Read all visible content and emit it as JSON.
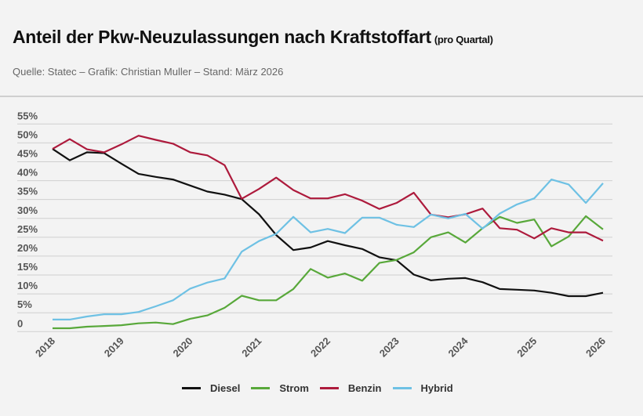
{
  "header": {
    "title": "Anteil der Pkw-Neuzulassungen nach Kraftstoffart",
    "title_suffix": "(pro Quartal)",
    "source": "Quelle: Statec – Grafik: Christian Muller – Stand: März 2026"
  },
  "chart_data": {
    "type": "line",
    "title": "Anteil der Pkw-Neuzulassungen nach Kraftstoffart (pro Quartal)",
    "x_start": 2018,
    "x_step": 0.25,
    "x_ticks": [
      "2018",
      "2019",
      "2020",
      "2021",
      "2022",
      "2023",
      "2024",
      "2025",
      "2026"
    ],
    "y_ticks": [
      "0",
      "5%",
      "10%",
      "15%",
      "20%",
      "25%",
      "30%",
      "35%",
      "40%",
      "45%",
      "50%",
      "55%"
    ],
    "ylim": [
      0,
      55
    ],
    "xlim": [
      2018,
      2026
    ],
    "grid": true,
    "legend_position": "bottom",
    "series": [
      {
        "name": "Diesel",
        "color": "#111111",
        "values": [
          48.4,
          45.4,
          47.5,
          47.3,
          44.5,
          41.8,
          41.0,
          40.3,
          38.7,
          37.1,
          36.3,
          35.1,
          31.1,
          25.6,
          21.6,
          22.3,
          24.0,
          22.9,
          21.9,
          19.7,
          18.9,
          15.1,
          13.6,
          14.0,
          14.2,
          13.1,
          11.3,
          11.1,
          10.9,
          10.3,
          9.4,
          9.4,
          10.3
        ]
      },
      {
        "name": "Strom",
        "color": "#58a83a",
        "values": [
          0.9,
          0.9,
          1.3,
          1.5,
          1.7,
          2.2,
          2.4,
          2.0,
          3.4,
          4.3,
          6.3,
          9.5,
          8.3,
          8.3,
          11.3,
          16.6,
          14.3,
          15.4,
          13.5,
          18.2,
          19.0,
          21.0,
          25.0,
          26.3,
          23.6,
          27.4,
          30.4,
          28.8,
          29.7,
          22.6,
          25.2,
          30.6,
          27.1
        ]
      },
      {
        "name": "Benzin",
        "color": "#ad1a3c",
        "values": [
          48.4,
          51.0,
          48.3,
          47.5,
          49.6,
          51.9,
          50.8,
          49.8,
          47.5,
          46.7,
          44.1,
          35.2,
          37.8,
          40.8,
          37.5,
          35.3,
          35.3,
          36.4,
          34.7,
          32.5,
          34.1,
          36.8,
          31.0,
          30.3,
          31.1,
          32.6,
          27.4,
          27.0,
          24.7,
          27.4,
          26.3,
          26.3,
          24.1
        ]
      },
      {
        "name": "Hybrid",
        "color": "#6ec1e4",
        "values": [
          3.2,
          3.2,
          4.0,
          4.6,
          4.6,
          5.2,
          6.7,
          8.3,
          11.4,
          13.0,
          14.1,
          21.2,
          24.0,
          25.9,
          30.4,
          26.3,
          27.2,
          26.1,
          30.2,
          30.2,
          28.3,
          27.7,
          31.0,
          30.0,
          31.2,
          27.3,
          31.3,
          33.7,
          35.3,
          40.3,
          39.0,
          34.1,
          39.3
        ]
      }
    ]
  }
}
